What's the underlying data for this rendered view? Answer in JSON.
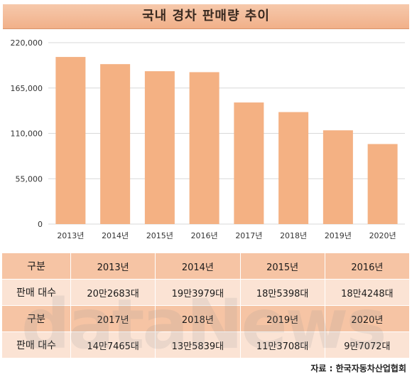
{
  "title": "국내 경차 판매량 추이",
  "chart_data": {
    "type": "bar",
    "categories": [
      "2013년",
      "2014년",
      "2015년",
      "2016년",
      "2017년",
      "2018년",
      "2019년",
      "2020년"
    ],
    "values": [
      202683,
      193979,
      185398,
      184248,
      147465,
      135839,
      113708,
      97072
    ],
    "ylim": [
      0,
      220000
    ],
    "yticks": [
      0,
      55000,
      110000,
      165000,
      220000
    ],
    "ytick_labels": [
      "0",
      "55,000",
      "110,000",
      "165,000",
      "220,000"
    ],
    "grid": true,
    "bar_color": "#f4b183"
  },
  "table": {
    "header_label": "구분",
    "row_label": "판매 대수",
    "top_years": [
      "2013년",
      "2014년",
      "2015년",
      "2016년"
    ],
    "top_values": [
      "20만2683대",
      "19만3979대",
      "18만5398대",
      "18만4248대"
    ],
    "bottom_years": [
      "2017년",
      "2018년",
      "2019년",
      "2020년"
    ],
    "bottom_values": [
      "14만7465대",
      "13만5839대",
      "11만3708대",
      "9만7072대"
    ]
  },
  "watermark": "dataNews",
  "source": "자료 : 한국자동차산업협회"
}
